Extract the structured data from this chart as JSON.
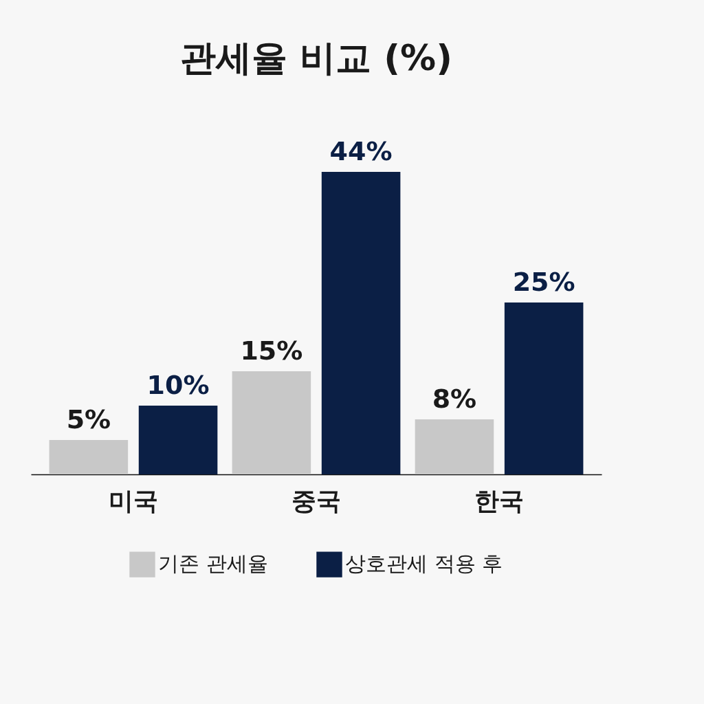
{
  "chart_data": {
    "type": "bar",
    "title": "관세율 비교 (%)",
    "categories": [
      "미국",
      "중국",
      "한국"
    ],
    "series": [
      {
        "name": "기존 관세율",
        "color": "#c8c8c8",
        "values": [
          5,
          15,
          8
        ],
        "value_labels": [
          "5%",
          "15%",
          "8%"
        ]
      },
      {
        "name": "상호관세 적용 후",
        "color": "#0b1f45",
        "values": [
          10,
          44,
          25
        ],
        "value_labels": [
          "10%",
          "44%",
          "25%"
        ]
      }
    ],
    "legend": "bottom"
  }
}
